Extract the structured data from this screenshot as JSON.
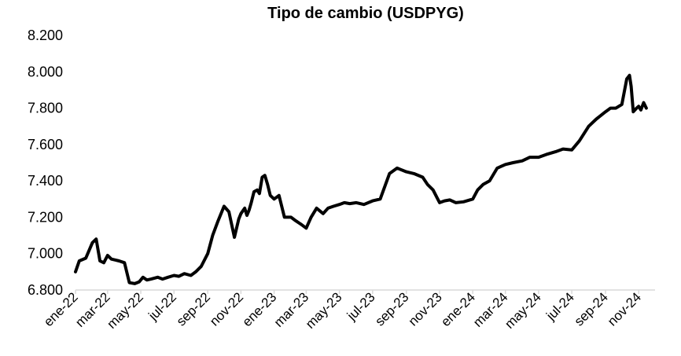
{
  "chart_data": {
    "type": "line",
    "title": "Tipo de cambio (USDPYG)",
    "xlabel": "",
    "ylabel": "",
    "ylim": [
      6800,
      8200
    ],
    "yticks": [
      6800,
      7000,
      7200,
      7400,
      7600,
      7800,
      8000,
      8200
    ],
    "ytick_labels": [
      "6.800",
      "7.000",
      "7.200",
      "7.400",
      "7.600",
      "7.800",
      "8.000",
      "8.200"
    ],
    "xticks": [
      "2022-01-01",
      "2022-03-01",
      "2022-05-01",
      "2022-07-01",
      "2022-09-01",
      "2022-11-01",
      "2023-01-01",
      "2023-03-01",
      "2023-05-01",
      "2023-07-01",
      "2023-09-01",
      "2023-11-01",
      "2024-01-01",
      "2024-03-01",
      "2024-05-01",
      "2024-07-01",
      "2024-09-01",
      "2024-11-01"
    ],
    "xtick_labels": [
      "ene-22",
      "mar-22",
      "may-22",
      "jul-22",
      "sep-22",
      "nov-22",
      "ene-23",
      "mar-23",
      "may-23",
      "jul-23",
      "sep-23",
      "nov-23",
      "ene-24",
      "mar-24",
      "may-24",
      "jul-24",
      "sep-24",
      "nov-24"
    ],
    "grid": false,
    "legend": "none",
    "line_color": "#000000",
    "series": [
      {
        "x": [
          "2022-01-01",
          "2022-01-08",
          "2022-01-20",
          "2022-02-01",
          "2022-02-08",
          "2022-02-15",
          "2022-02-22",
          "2022-03-01",
          "2022-03-08",
          "2022-03-15",
          "2022-03-22",
          "2022-04-01",
          "2022-04-10",
          "2022-04-20",
          "2022-04-28",
          "2022-05-05",
          "2022-05-12",
          "2022-05-20",
          "2022-06-01",
          "2022-06-10",
          "2022-06-20",
          "2022-07-01",
          "2022-07-10",
          "2022-07-20",
          "2022-08-01",
          "2022-08-10",
          "2022-08-20",
          "2022-09-01",
          "2022-09-10",
          "2022-09-20",
          "2022-10-01",
          "2022-10-10",
          "2022-10-20",
          "2022-10-28",
          "2022-11-01",
          "2022-11-08",
          "2022-11-12",
          "2022-11-16",
          "2022-11-20",
          "2022-11-25",
          "2022-12-01",
          "2022-12-05",
          "2022-12-10",
          "2022-12-15",
          "2022-12-20",
          "2022-12-25",
          "2023-01-01",
          "2023-01-10",
          "2023-01-20",
          "2023-02-01",
          "2023-02-10",
          "2023-02-20",
          "2023-03-01",
          "2023-03-10",
          "2023-03-20",
          "2023-04-01",
          "2023-04-10",
          "2023-04-20",
          "2023-05-01",
          "2023-05-10",
          "2023-05-20",
          "2023-06-01",
          "2023-06-15",
          "2023-07-01",
          "2023-07-15",
          "2023-08-01",
          "2023-08-15",
          "2023-09-01",
          "2023-09-15",
          "2023-10-01",
          "2023-10-10",
          "2023-10-20",
          "2023-11-01",
          "2023-11-10",
          "2023-11-20",
          "2023-12-01",
          "2023-12-15",
          "2024-01-01",
          "2024-01-10",
          "2024-01-20",
          "2024-02-01",
          "2024-02-15",
          "2024-03-01",
          "2024-03-15",
          "2024-04-01",
          "2024-04-15",
          "2024-05-01",
          "2024-05-15",
          "2024-06-01",
          "2024-06-15",
          "2024-07-01",
          "2024-07-15",
          "2024-08-01",
          "2024-08-15",
          "2024-09-01",
          "2024-09-10",
          "2024-09-20",
          "2024-10-01",
          "2024-10-10",
          "2024-10-15",
          "2024-10-18",
          "2024-10-22",
          "2024-10-28",
          "2024-11-01",
          "2024-11-05",
          "2024-11-10",
          "2024-11-15"
        ],
        "y": [
          6900,
          6960,
          6975,
          7060,
          7080,
          6960,
          6950,
          6990,
          6970,
          6965,
          6960,
          6950,
          6840,
          6835,
          6845,
          6870,
          6855,
          6860,
          6870,
          6860,
          6870,
          6880,
          6875,
          6890,
          6880,
          6900,
          6930,
          7000,
          7100,
          7180,
          7260,
          7230,
          7090,
          7190,
          7220,
          7250,
          7210,
          7240,
          7280,
          7340,
          7350,
          7330,
          7420,
          7430,
          7380,
          7320,
          7300,
          7320,
          7200,
          7200,
          7180,
          7160,
          7140,
          7200,
          7250,
          7220,
          7250,
          7260,
          7270,
          7280,
          7275,
          7280,
          7270,
          7290,
          7300,
          7440,
          7470,
          7450,
          7440,
          7420,
          7380,
          7350,
          7280,
          7290,
          7295,
          7280,
          7285,
          7300,
          7350,
          7380,
          7400,
          7470,
          7490,
          7500,
          7510,
          7530,
          7530,
          7545,
          7560,
          7575,
          7570,
          7620,
          7700,
          7740,
          7780,
          7800,
          7800,
          7820,
          7960,
          7980,
          7920,
          7780,
          7800,
          7810,
          7790,
          7830,
          7800
        ]
      }
    ]
  }
}
